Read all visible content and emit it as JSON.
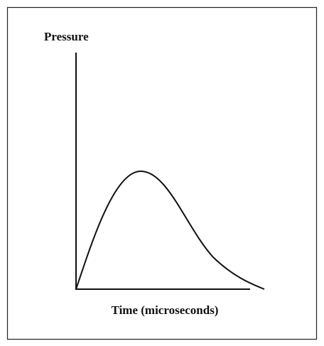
{
  "diagram": {
    "y_axis_label": "Pressure",
    "x_axis_label": "Time (microseconds)"
  }
}
